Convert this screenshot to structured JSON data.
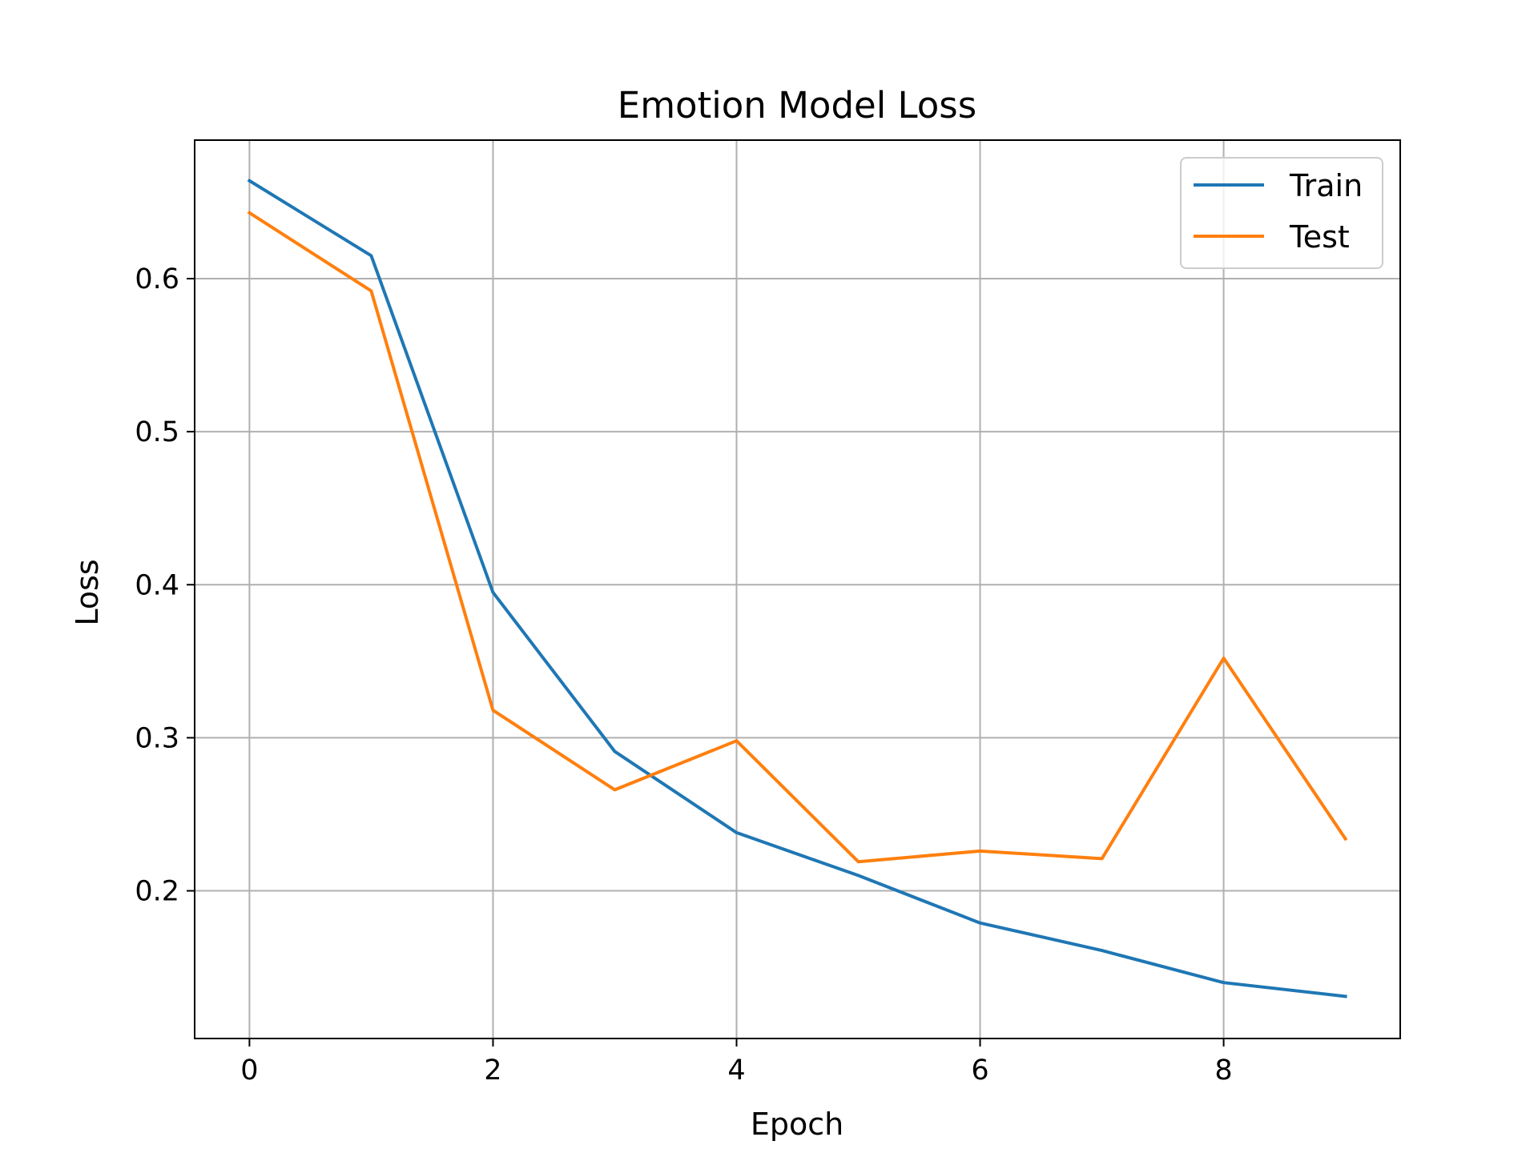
{
  "chart_data": {
    "type": "line",
    "title": "Emotion Model Loss",
    "xlabel": "Epoch",
    "ylabel": "Loss",
    "x": [
      0,
      1,
      2,
      3,
      4,
      5,
      6,
      7,
      8,
      9
    ],
    "series": [
      {
        "name": "Train",
        "color": "#1f77b4",
        "values": [
          0.664,
          0.615,
          0.395,
          0.291,
          0.238,
          0.21,
          0.179,
          0.161,
          0.14,
          0.131
        ]
      },
      {
        "name": "Test",
        "color": "#ff7f0e",
        "values": [
          0.643,
          0.592,
          0.318,
          0.266,
          0.298,
          0.219,
          0.226,
          0.221,
          0.352,
          0.234
        ]
      }
    ],
    "xlim": [
      -0.45,
      9.45
    ],
    "ylim": [
      0.1035,
      0.6905
    ],
    "xticks": [
      0,
      2,
      4,
      6,
      8
    ],
    "yticks": [
      0.2,
      0.3,
      0.4,
      0.5,
      0.6
    ],
    "xtick_labels": [
      "0",
      "2",
      "4",
      "6",
      "8"
    ],
    "ytick_labels": [
      "0.2",
      "0.3",
      "0.4",
      "0.5",
      "0.6"
    ],
    "grid": true,
    "legend_position": "top-right"
  }
}
